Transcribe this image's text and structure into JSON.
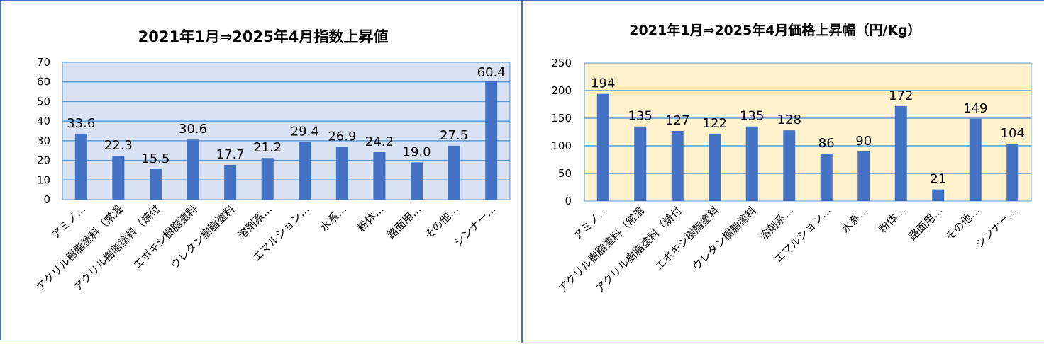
{
  "chart_data": [
    {
      "type": "bar",
      "title": "2021年1月⇒2025年4月指数上昇値",
      "categories": [
        "アミノ…",
        "アクリル樹脂塗料（常温",
        "アクリル樹脂塗料（焼付",
        "エポキシ樹脂塗料",
        "ウレタン樹脂塗料",
        "溶剤系…",
        "エマルション…",
        "水系…",
        "粉体…",
        "路面用…",
        "その他…",
        "シンナー…"
      ],
      "values": [
        33.6,
        22.3,
        15.5,
        30.6,
        17.7,
        21.2,
        29.4,
        26.9,
        24.2,
        19.0,
        27.5,
        60.4
      ],
      "value_labels": [
        "33.6",
        "22.3",
        "15.5",
        "30.6",
        "17.7",
        "21.2",
        "29.4",
        "26.9",
        "24.2",
        "19.0",
        "27.5",
        "60.4"
      ],
      "ylim": [
        0,
        70
      ],
      "yticks": [
        "0",
        "10",
        "20",
        "30",
        "40",
        "50",
        "60",
        "70"
      ],
      "grid": true,
      "colors": {
        "bar": "#4472c4",
        "plot_bg": "#dae3f3",
        "grid": "#5b9bd5"
      }
    },
    {
      "type": "bar",
      "title": "2021年1月⇒2025年4月価格上昇幅（円/Kg）",
      "categories": [
        "アミノ…",
        "アクリル樹脂塗料（常温",
        "アクリル樹脂塗料（焼付",
        "エポキシ樹脂塗料",
        "ウレタン樹脂塗料",
        "溶剤系…",
        "エマルション…",
        "水系…",
        "粉体…",
        "路面用…",
        "その他…",
        "シンナー…"
      ],
      "values": [
        194,
        135,
        127,
        122,
        135,
        128,
        86,
        90,
        172,
        21,
        149,
        104
      ],
      "value_labels": [
        "194",
        "135",
        "127",
        "122",
        "135",
        "128",
        "86",
        "90",
        "172",
        "21",
        "149",
        "104"
      ],
      "ylim": [
        0,
        250
      ],
      "yticks": [
        "0",
        "50",
        "100",
        "150",
        "200",
        "250"
      ],
      "grid": true,
      "colors": {
        "bar": "#4472c4",
        "plot_bg": "#fff2cc",
        "grid": "#5b9bd5"
      }
    }
  ]
}
